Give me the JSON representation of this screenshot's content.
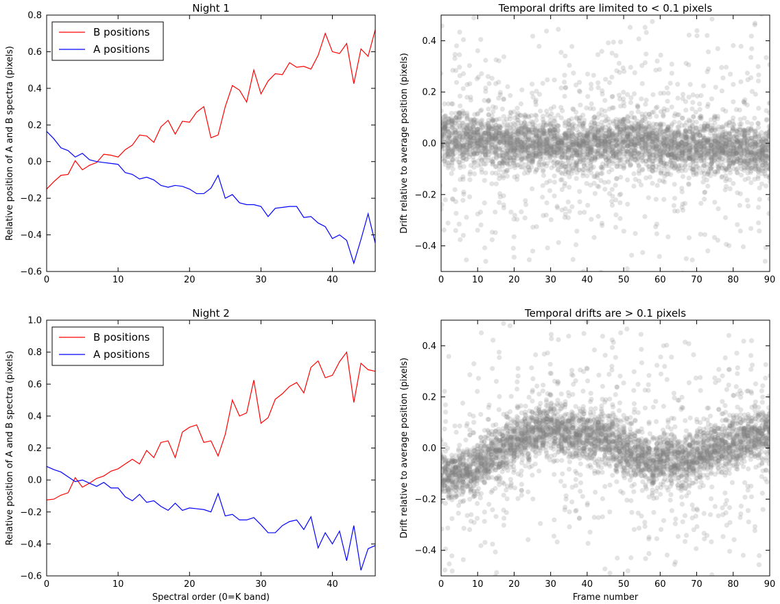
{
  "chart_data": [
    {
      "type": "line",
      "title": "Night 1",
      "xlabel": "",
      "ylabel": "Relative position of A and B spectra (pixels)",
      "xlim": [
        0,
        46
      ],
      "ylim": [
        -0.6,
        0.8
      ],
      "xticks": [
        0,
        10,
        20,
        30,
        40
      ],
      "yticks": [
        -0.6,
        -0.4,
        -0.2,
        0.0,
        0.2,
        0.4,
        0.6,
        0.8
      ],
      "grid": false,
      "legend": "top-left",
      "x": [
        0,
        1,
        2,
        3,
        4,
        5,
        6,
        7,
        8,
        9,
        10,
        11,
        12,
        13,
        14,
        15,
        16,
        17,
        18,
        19,
        20,
        21,
        22,
        23,
        24,
        25,
        26,
        27,
        28,
        29,
        30,
        31,
        32,
        33,
        34,
        35,
        36,
        37,
        38,
        39,
        40,
        41,
        42,
        43,
        44,
        45,
        46
      ],
      "series": [
        {
          "name": "B positions",
          "color": "#ff0000",
          "values": [
            -0.15,
            -0.11,
            -0.075,
            -0.07,
            0.005,
            -0.045,
            -0.02,
            -0.005,
            0.04,
            0.035,
            0.025,
            0.065,
            0.09,
            0.145,
            0.14,
            0.105,
            0.19,
            0.225,
            0.15,
            0.22,
            0.215,
            0.27,
            0.3,
            0.13,
            0.145,
            0.3,
            0.415,
            0.39,
            0.325,
            0.5,
            0.37,
            0.44,
            0.48,
            0.475,
            0.54,
            0.515,
            0.52,
            0.505,
            0.58,
            0.7,
            0.6,
            0.59,
            0.645,
            0.425,
            0.615,
            0.575,
            0.72
          ]
        },
        {
          "name": "A positions",
          "color": "#0000ff",
          "values": [
            0.165,
            0.125,
            0.075,
            0.06,
            0.025,
            0.045,
            0.01,
            0.0,
            -0.005,
            -0.01,
            -0.015,
            -0.06,
            -0.07,
            -0.095,
            -0.085,
            -0.1,
            -0.13,
            -0.14,
            -0.13,
            -0.135,
            -0.15,
            -0.175,
            -0.175,
            -0.145,
            -0.075,
            -0.2,
            -0.18,
            -0.225,
            -0.235,
            -0.235,
            -0.245,
            -0.3,
            -0.255,
            -0.25,
            -0.245,
            -0.245,
            -0.305,
            -0.3,
            -0.335,
            -0.355,
            -0.42,
            -0.4,
            -0.43,
            -0.555,
            -0.425,
            -0.285,
            -0.445
          ]
        }
      ]
    },
    {
      "type": "scatter",
      "title": "Temporal drifts are limited to < 0.1 pixels",
      "xlabel": "",
      "ylabel": "Drift relative to average position (pixels)",
      "xlim": [
        0,
        90
      ],
      "ylim": [
        -0.5,
        0.5
      ],
      "xticks": [
        0,
        10,
        20,
        30,
        40,
        50,
        60,
        70,
        80,
        90
      ],
      "yticks": [
        -0.4,
        -0.2,
        0.0,
        0.2,
        0.4
      ],
      "grid": false,
      "color": "#808080",
      "trend": [
        [
          0,
          0.025
        ],
        [
          10,
          0.01
        ],
        [
          20,
          0.005
        ],
        [
          30,
          0.0
        ],
        [
          40,
          -0.005
        ],
        [
          50,
          0.01
        ],
        [
          55,
          0.015
        ],
        [
          60,
          -0.005
        ],
        [
          70,
          -0.015
        ],
        [
          80,
          -0.02
        ],
        [
          90,
          -0.035
        ]
      ],
      "spread": 0.05,
      "points_per_frame": 47
    },
    {
      "type": "line",
      "title": "Night 2",
      "xlabel": "Spectral order (0=K band)",
      "ylabel": "Relative position of A and B spectra (pixels)",
      "xlim": [
        0,
        46
      ],
      "ylim": [
        -0.6,
        1.0
      ],
      "xticks": [
        0,
        10,
        20,
        30,
        40
      ],
      "yticks": [
        -0.6,
        -0.4,
        -0.2,
        0.0,
        0.2,
        0.4,
        0.6,
        0.8,
        1.0
      ],
      "grid": false,
      "legend": "top-left",
      "x": [
        0,
        1,
        2,
        3,
        4,
        5,
        6,
        7,
        8,
        9,
        10,
        11,
        12,
        13,
        14,
        15,
        16,
        17,
        18,
        19,
        20,
        21,
        22,
        23,
        24,
        25,
        26,
        27,
        28,
        29,
        30,
        31,
        32,
        33,
        34,
        35,
        36,
        37,
        38,
        39,
        40,
        41,
        42,
        43,
        44,
        45,
        46
      ],
      "series": [
        {
          "name": "B positions",
          "color": "#ff0000",
          "values": [
            -0.125,
            -0.12,
            -0.095,
            -0.08,
            0.015,
            -0.045,
            -0.02,
            0.01,
            0.025,
            0.055,
            0.07,
            0.1,
            0.13,
            0.1,
            0.185,
            0.14,
            0.235,
            0.245,
            0.14,
            0.3,
            0.33,
            0.345,
            0.235,
            0.245,
            0.15,
            0.285,
            0.5,
            0.4,
            0.42,
            0.625,
            0.355,
            0.39,
            0.505,
            0.54,
            0.585,
            0.61,
            0.545,
            0.705,
            0.745,
            0.64,
            0.655,
            0.74,
            0.8,
            0.485,
            0.73,
            0.69,
            0.68
          ]
        },
        {
          "name": "A positions",
          "color": "#0000ff",
          "values": [
            0.085,
            0.065,
            0.05,
            0.02,
            -0.01,
            0.0,
            -0.02,
            -0.04,
            -0.015,
            -0.05,
            -0.05,
            -0.105,
            -0.13,
            -0.09,
            -0.14,
            -0.13,
            -0.165,
            -0.19,
            -0.145,
            -0.19,
            -0.175,
            -0.18,
            -0.185,
            -0.2,
            -0.085,
            -0.225,
            -0.215,
            -0.25,
            -0.25,
            -0.235,
            -0.28,
            -0.33,
            -0.33,
            -0.285,
            -0.26,
            -0.25,
            -0.31,
            -0.23,
            -0.425,
            -0.33,
            -0.4,
            -0.32,
            -0.505,
            -0.285,
            -0.565,
            -0.43,
            -0.41
          ]
        }
      ]
    },
    {
      "type": "scatter",
      "title": "Temporal drifts are > 0.1 pixels",
      "xlabel": "Frame number",
      "ylabel": "Drift relative to average position (pixels)",
      "xlim": [
        0,
        90
      ],
      "ylim": [
        -0.5,
        0.5
      ],
      "xticks": [
        0,
        10,
        20,
        30,
        40,
        50,
        60,
        70,
        80,
        90
      ],
      "yticks": [
        -0.4,
        -0.2,
        0.0,
        0.2,
        0.4
      ],
      "grid": false,
      "color": "#808080",
      "trend": [
        [
          0,
          -0.12
        ],
        [
          5,
          -0.105
        ],
        [
          10,
          -0.07
        ],
        [
          15,
          -0.02
        ],
        [
          20,
          0.02
        ],
        [
          25,
          0.055
        ],
        [
          30,
          0.075
        ],
        [
          35,
          0.055
        ],
        [
          40,
          0.04
        ],
        [
          45,
          0.035
        ],
        [
          50,
          0.0
        ],
        [
          55,
          -0.035
        ],
        [
          58,
          -0.06
        ],
        [
          62,
          -0.03
        ],
        [
          66,
          -0.06
        ],
        [
          70,
          -0.03
        ],
        [
          75,
          0.0
        ],
        [
          80,
          0.025
        ],
        [
          85,
          0.045
        ],
        [
          90,
          0.06
        ]
      ],
      "spread": 0.05,
      "points_per_frame": 47
    }
  ]
}
